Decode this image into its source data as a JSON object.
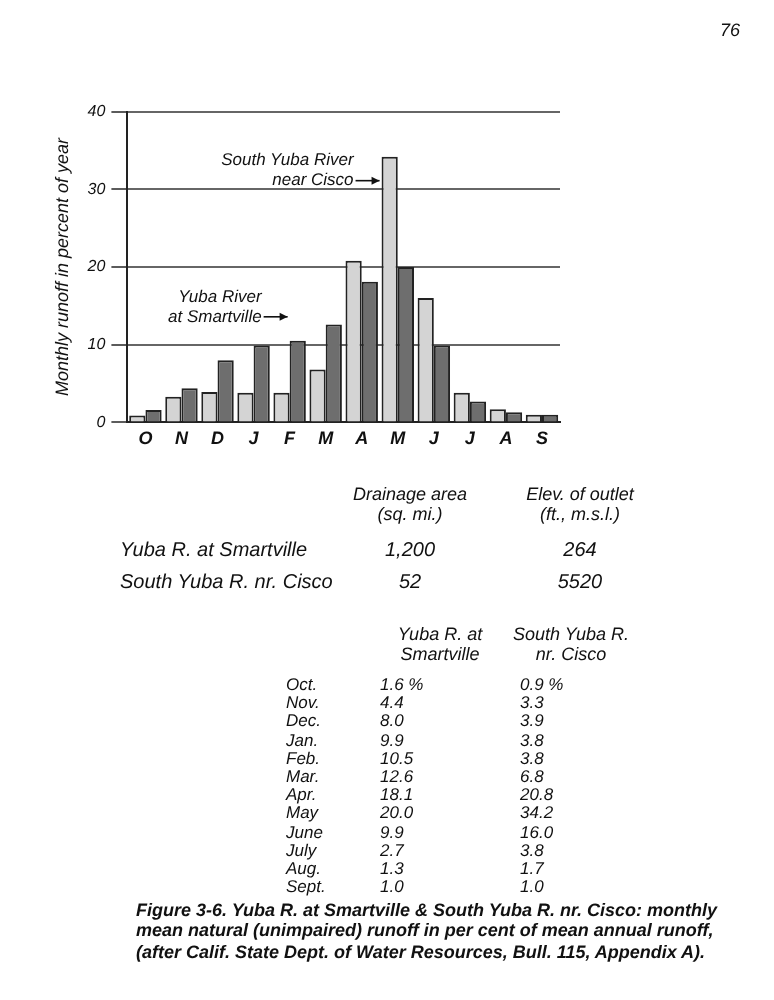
{
  "chart_data": {
    "type": "bar",
    "ylabel": "Monthly runoff in percent of year",
    "categories": [
      "O",
      "N",
      "D",
      "J",
      "F",
      "M",
      "A",
      "M",
      "J",
      "J",
      "A",
      "S"
    ],
    "series": [
      {
        "name": "South Yuba River near Cisco",
        "color": "#d4d4d4",
        "values": [
          0.9,
          3.3,
          3.9,
          3.8,
          3.8,
          6.8,
          20.8,
          34.2,
          16.0,
          3.8,
          1.7,
          1.0
        ]
      },
      {
        "name": "Yuba River at Smartville",
        "color": "#6e6e6e",
        "values": [
          1.6,
          4.4,
          8.0,
          9.9,
          10.5,
          12.6,
          18.1,
          20.0,
          9.9,
          2.7,
          1.3,
          1.0
        ]
      }
    ],
    "ylim": [
      0,
      40
    ],
    "yticks": [
      0,
      10,
      20,
      30,
      40
    ],
    "grid": "y",
    "legend": false,
    "annotations": [
      "76",
      "Drainage area\n(sq. mi.)",
      "Elev. of outlet\n(ft., m.s.l.)",
      "Yuba R. at Smartville",
      "1,200",
      "264",
      "South Yuba R. nr. Cisco",
      "52",
      "5520",
      "Yuba R. at\nSmartville",
      "South Yuba R.\nnr. Cisco",
      "Oct.",
      "Nov.",
      "Dec.",
      "Jan.",
      "Feb.",
      "Mar.",
      "Apr.",
      "May",
      "June",
      "July",
      "Aug.",
      "Sept.",
      "1.6 %",
      "4.4",
      "8.0",
      "9.9",
      "10.5",
      "12.6",
      "18.1",
      "20.0",
      "9.9",
      "2.7",
      "1.3",
      "1.0",
      "0.9 %",
      "3.3",
      "3.9",
      "3.8",
      "3.8",
      "6.8",
      "20.8",
      "34.2",
      "16.0",
      "3.8",
      "1.7",
      "1.0",
      "Figure 3-6. Yuba R. at Smartville & South Yuba R. nr. Cisco: monthly mean natural (unimpaired) runoff in per cent of mean annual runoff, (after Calif. State Dept. of Water Resources, Bull. 115, Appendix A)."
    ]
  }
}
